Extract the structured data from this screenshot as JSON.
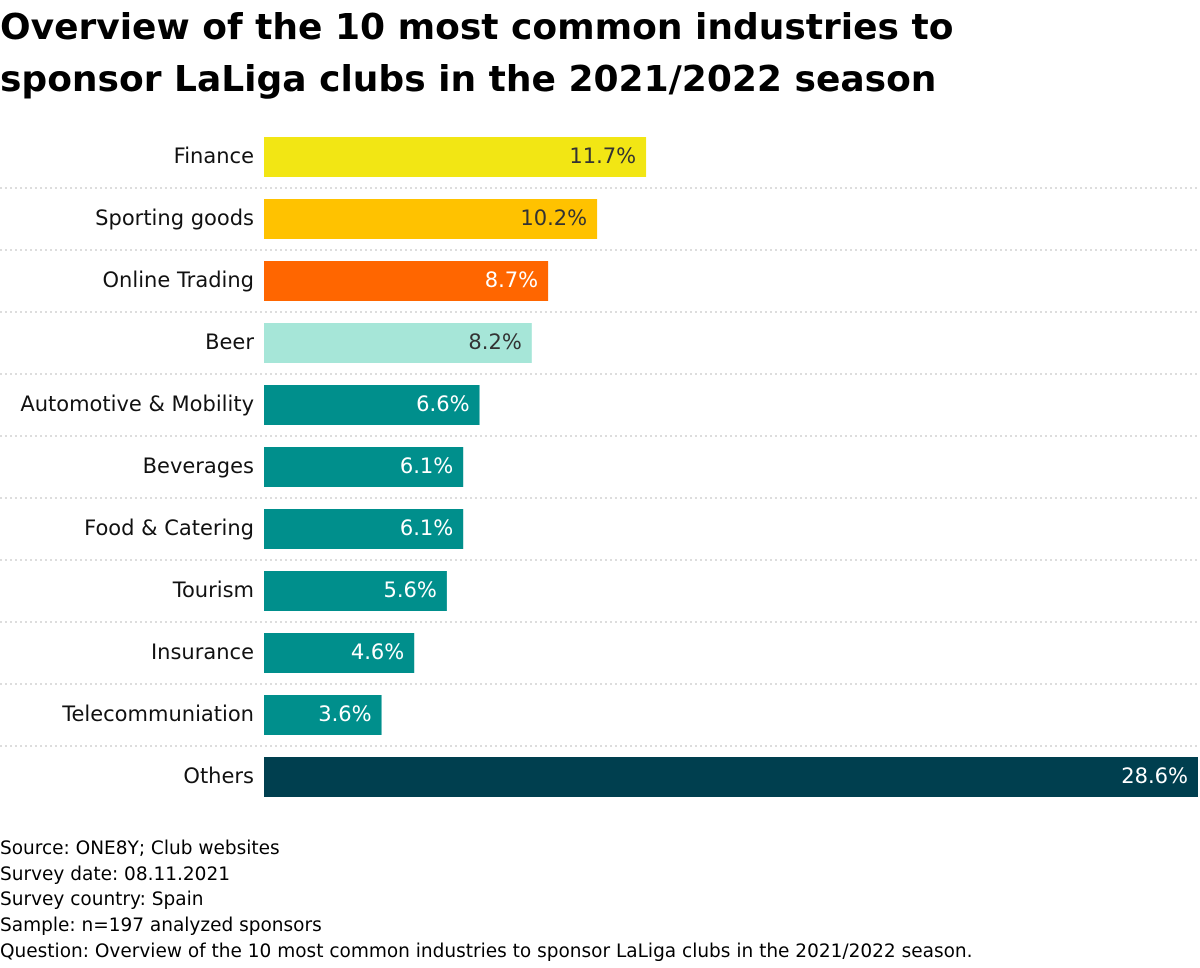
{
  "chart_data": {
    "type": "bar",
    "orientation": "horizontal",
    "title": "Overview of the 10 most common industries to sponsor LaLiga clubs in the 2021/2022 season",
    "categories": [
      "Finance",
      "Sporting goods",
      "Online Trading",
      "Beer",
      "Automotive & Mobility",
      "Beverages",
      "Food & Catering",
      "Tourism",
      "Insurance",
      "Telecommuniation",
      "Others"
    ],
    "values": [
      11.7,
      10.2,
      8.7,
      8.2,
      6.6,
      6.1,
      6.1,
      5.6,
      4.6,
      3.6,
      28.6
    ],
    "value_labels": [
      "11.7%",
      "10.2%",
      "8.7%",
      "8.2%",
      "6.6%",
      "6.1%",
      "6.1%",
      "5.6%",
      "4.6%",
      "3.6%",
      "28.6%"
    ],
    "colors": [
      "#f2e614",
      "#ffc200",
      "#ff6600",
      "#a6e6d8",
      "#008f8c",
      "#008f8c",
      "#008f8c",
      "#008f8c",
      "#008f8c",
      "#008f8c",
      "#003f4f"
    ],
    "notes": [
      "Source: ONE8Y; Club websites",
      "Survey date: 08.11.2021",
      "Survey country: Spain",
      "Sample: n=197 analyzed sponsors",
      "Question: Overview of the 10 most common industries to sponsor LaLiga clubs in the 2021/2022 season."
    ]
  }
}
